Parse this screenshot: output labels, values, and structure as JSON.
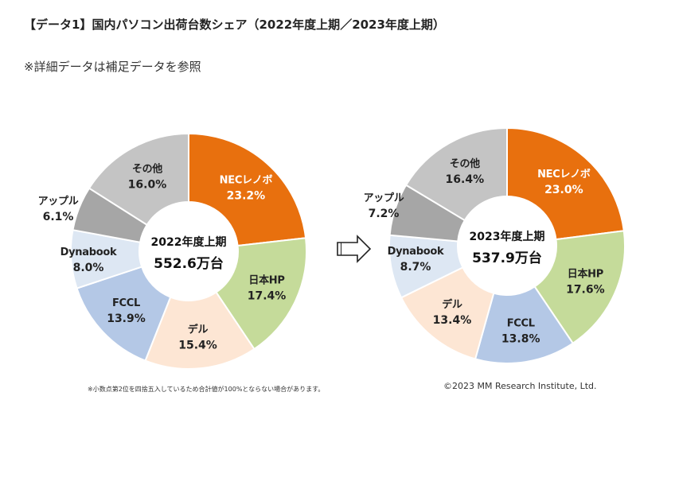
{
  "title": "【データ1】国内パソコン出荷台数シェア（2022年度上期／2023年度上期）",
  "subtitle": "※詳細データは補足データを参照",
  "footnote": "※小数点第2位を四捨五入しているため合計値が100%とならない場合があります。",
  "copyright": "©2023  MM Research Institute, Ltd.",
  "colors": {
    "NECレノボ": "#e8700e",
    "日本HP": "#c5db9a",
    "デル": "#fde6d4",
    "FCCL": "#b4c8e6",
    "Dynabook": "#dde7f3",
    "アップル": "#a6a6a6",
    "その他": "#c4c4c4"
  },
  "chart_data": [
    {
      "type": "pie",
      "variant": "donut",
      "center_label": "2022年度上期",
      "center_value": "552.6万台",
      "slices": [
        {
          "label": "NECレノボ",
          "value": 23.2,
          "value_label": "23.2%"
        },
        {
          "label": "日本HP",
          "value": 17.4,
          "value_label": "17.4%"
        },
        {
          "label": "デル",
          "value": 15.4,
          "value_label": "15.4%"
        },
        {
          "label": "FCCL",
          "value": 13.9,
          "value_label": "13.9%"
        },
        {
          "label": "Dynabook",
          "value": 8.0,
          "value_label": "8.0%"
        },
        {
          "label": "アップル",
          "value": 6.1,
          "value_label": "6.1%"
        },
        {
          "label": "その他",
          "value": 16.0,
          "value_label": "16.0%"
        }
      ]
    },
    {
      "type": "pie",
      "variant": "donut",
      "center_label": "2023年度上期",
      "center_value": "537.9万台",
      "slices": [
        {
          "label": "NECレノボ",
          "value": 23.0,
          "value_label": "23.0%"
        },
        {
          "label": "日本HP",
          "value": 17.6,
          "value_label": "17.6%"
        },
        {
          "label": "FCCL",
          "value": 13.8,
          "value_label": "13.8%"
        },
        {
          "label": "デル",
          "value": 13.4,
          "value_label": "13.4%"
        },
        {
          "label": "Dynabook",
          "value": 8.7,
          "value_label": "8.7%"
        },
        {
          "label": "アップル",
          "value": 7.2,
          "value_label": "7.2%"
        },
        {
          "label": "その他",
          "value": 16.4,
          "value_label": "16.4%"
        }
      ]
    }
  ]
}
